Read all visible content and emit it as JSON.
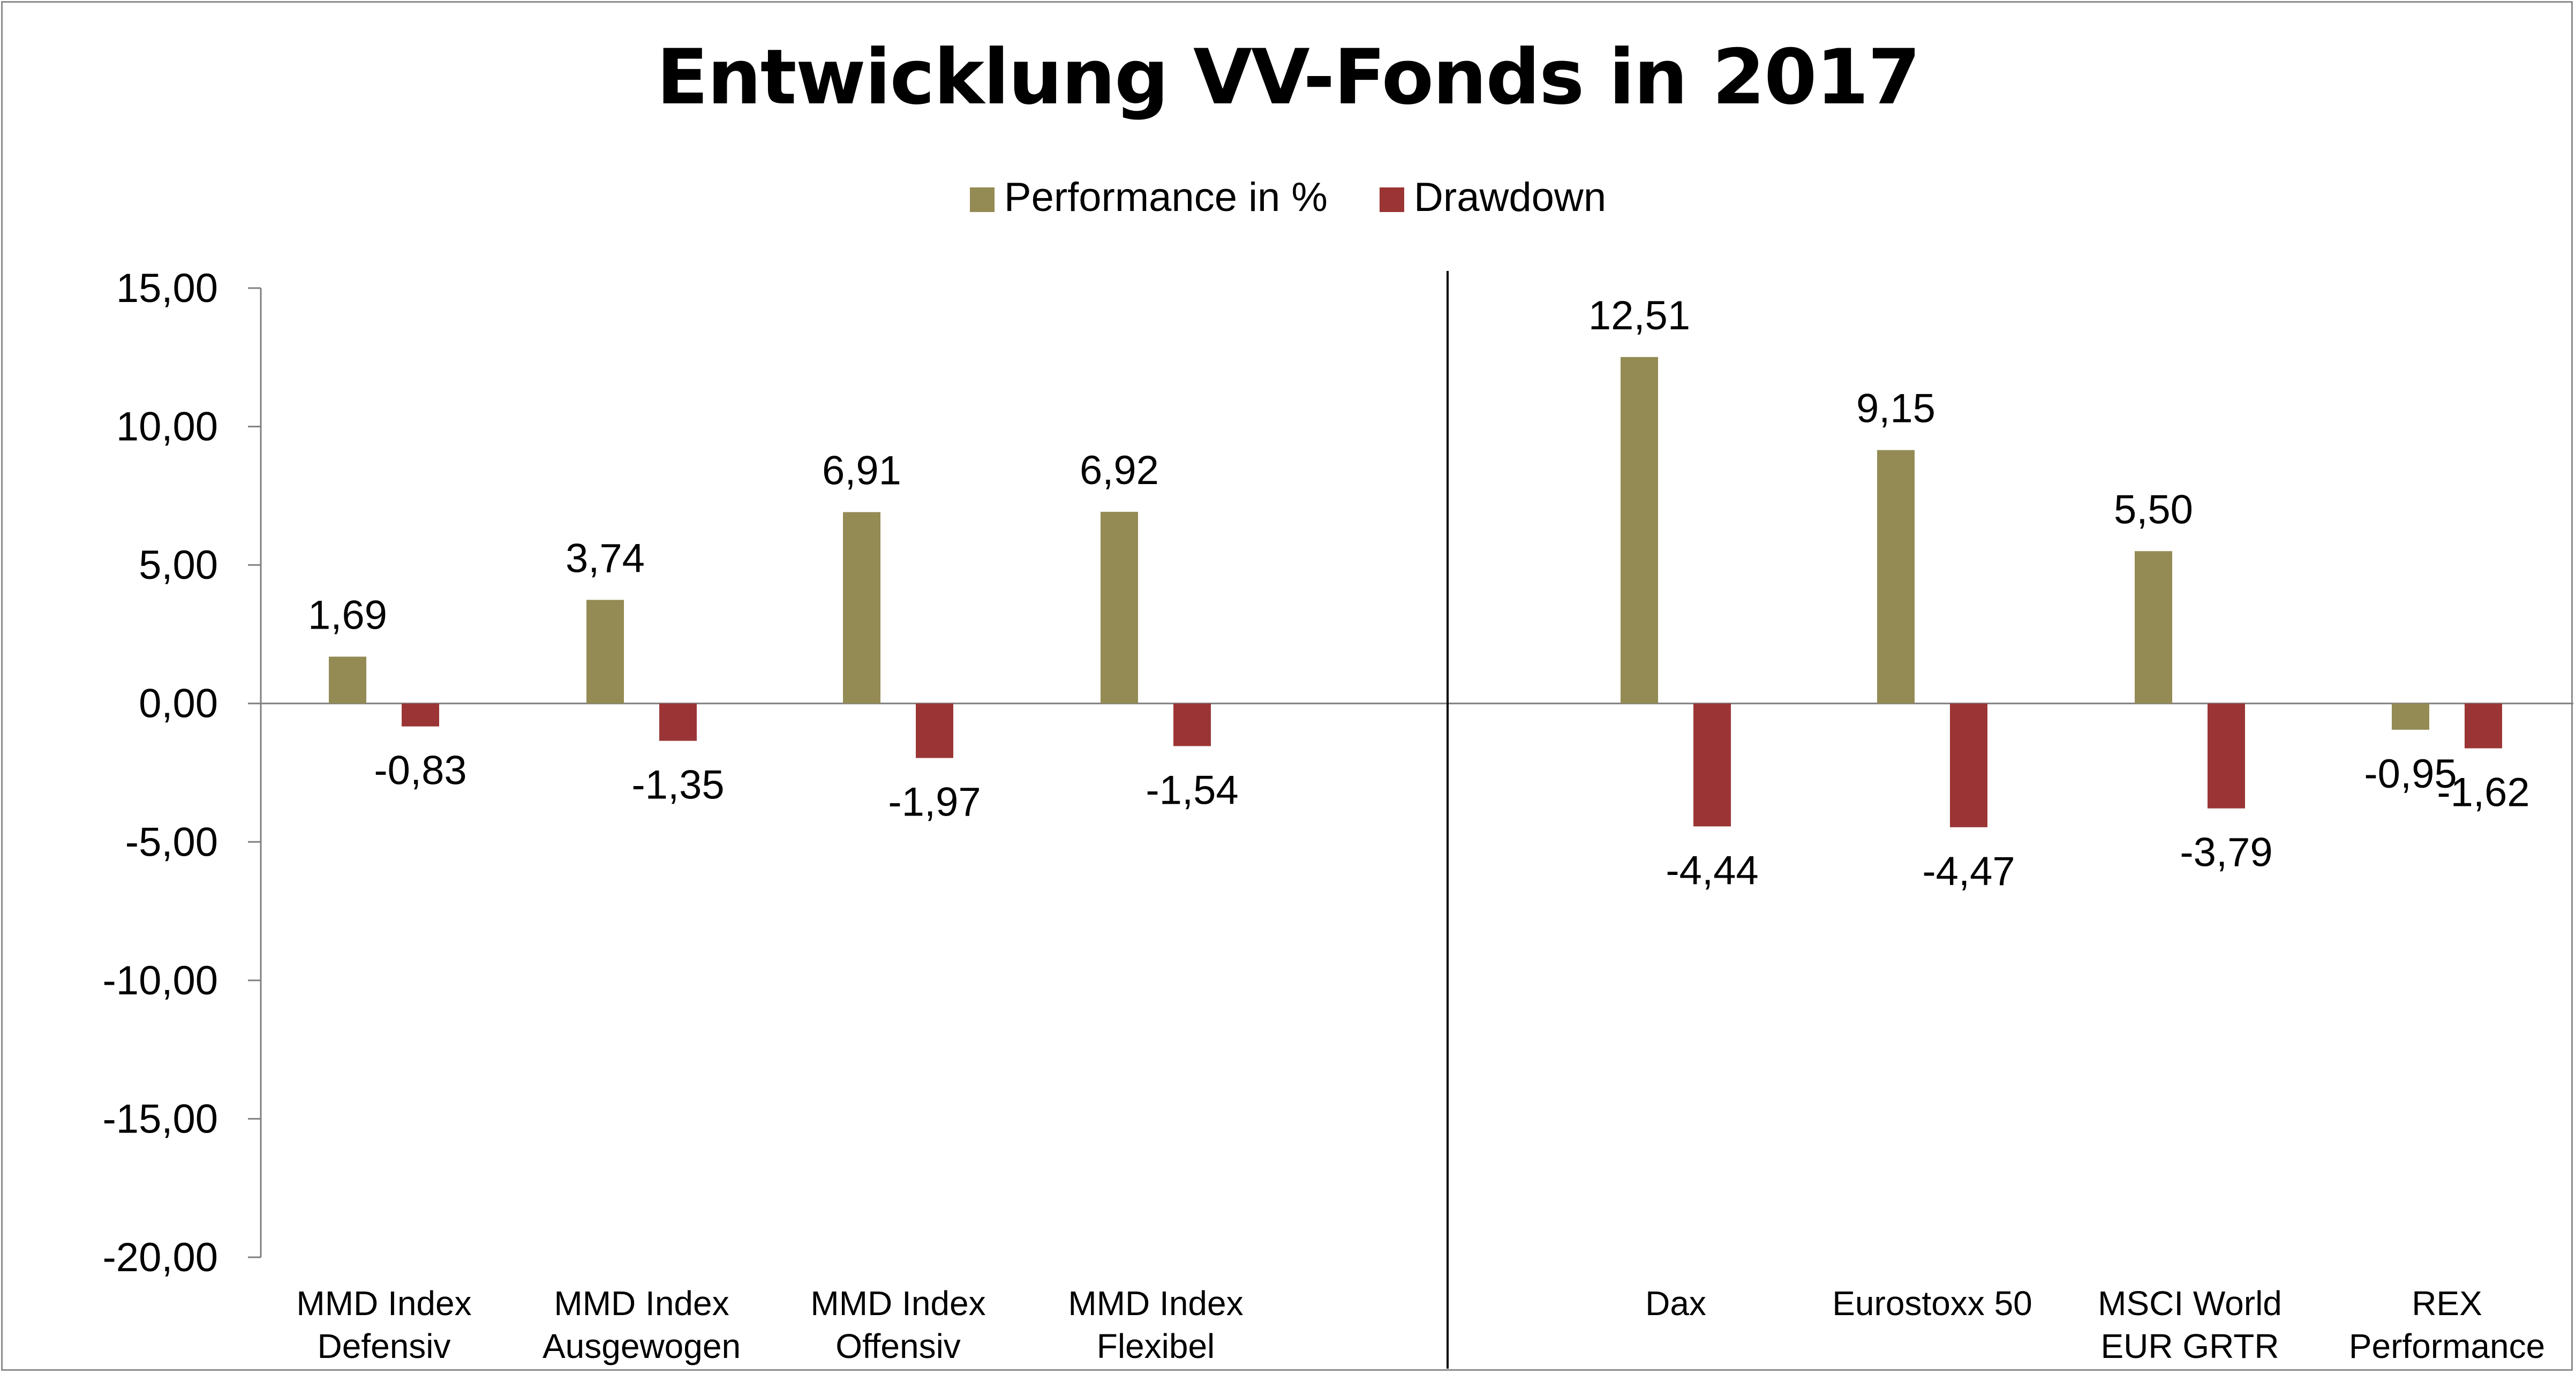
{
  "chart_data": {
    "type": "bar",
    "title": "Entwicklung VV-Fonds in 2017",
    "xlabel": "",
    "ylabel": "",
    "ylim": [
      -20,
      15
    ],
    "y_ticks": [
      "15,00",
      "10,00",
      "5,00",
      "0,00",
      "-5,00",
      "-10,00",
      "-15,00",
      "-20,00"
    ],
    "y_tick_values": [
      15,
      10,
      5,
      0,
      -5,
      -10,
      -15,
      -20
    ],
    "grid": false,
    "legend_position": "top",
    "categories": [
      [
        "MMD Index",
        "Defensiv"
      ],
      [
        "MMD Index",
        "Ausgewogen"
      ],
      [
        "MMD Index",
        "Offensiv"
      ],
      [
        "MMD Index",
        "Flexibel"
      ],
      [
        "Dax"
      ],
      [
        "Eurostoxx 50"
      ],
      [
        "MSCI World",
        "EUR GRTR"
      ],
      [
        "REX",
        "Performance"
      ]
    ],
    "series": [
      {
        "name": "Performance in %",
        "color": "#948a54",
        "values": [
          1.69,
          3.74,
          6.91,
          6.92,
          12.51,
          9.15,
          5.5,
          -0.95
        ],
        "labels": [
          "1,69",
          "3,74",
          "6,91",
          "6,92",
          "12,51",
          "9,15",
          "5,50",
          "-0,95"
        ]
      },
      {
        "name": "Drawdown",
        "color": "#9b3535",
        "values": [
          -0.83,
          -1.35,
          -1.97,
          -1.54,
          -4.44,
          -4.47,
          -3.79,
          -1.62
        ],
        "labels": [
          "-0,83",
          "-1,35",
          "-1,97",
          "-1,54",
          "-4,44",
          "-4,47",
          "-3,79",
          "-1,62"
        ]
      }
    ]
  }
}
